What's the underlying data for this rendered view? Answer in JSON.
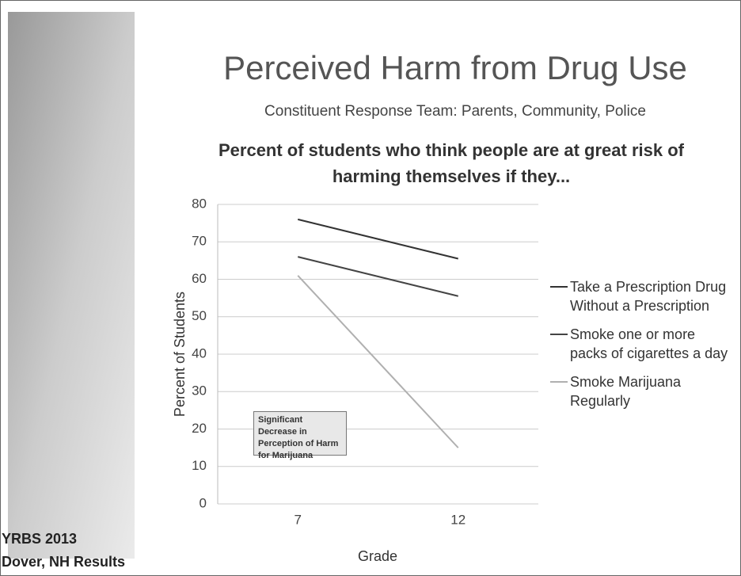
{
  "slide": {
    "title": "Perceived Harm from Drug Use",
    "subtitle": "Constituent Response Team: Parents, Community, Police",
    "footer": [
      "YRBS 2013",
      "Dover, NH Results"
    ]
  },
  "chart_data": {
    "type": "line",
    "title": "Percent of students who think people are at great risk of harming themselves if they...",
    "x_label": "Grade",
    "y_label": "Percent of Students",
    "categories": [
      "7",
      "12"
    ],
    "series": [
      {
        "name": "Take a Prescription Drug Without a Prescription",
        "color": "#333333",
        "values": [
          76,
          65.5
        ]
      },
      {
        "name": "Smoke one or more packs of cigarettes a day",
        "color": "#444444",
        "values": [
          66,
          55.5
        ]
      },
      {
        "name": "Smoke Marijuana Regularly",
        "color": "#b0b0b0",
        "values": [
          61,
          15
        ]
      }
    ],
    "ylim": [
      0,
      80
    ],
    "yticks": [
      0,
      10,
      20,
      30,
      40,
      50,
      60,
      70,
      80
    ],
    "grid": true,
    "legend": "right",
    "annotation": "Significant Decrease in Perception of Harm for Marijuana"
  }
}
